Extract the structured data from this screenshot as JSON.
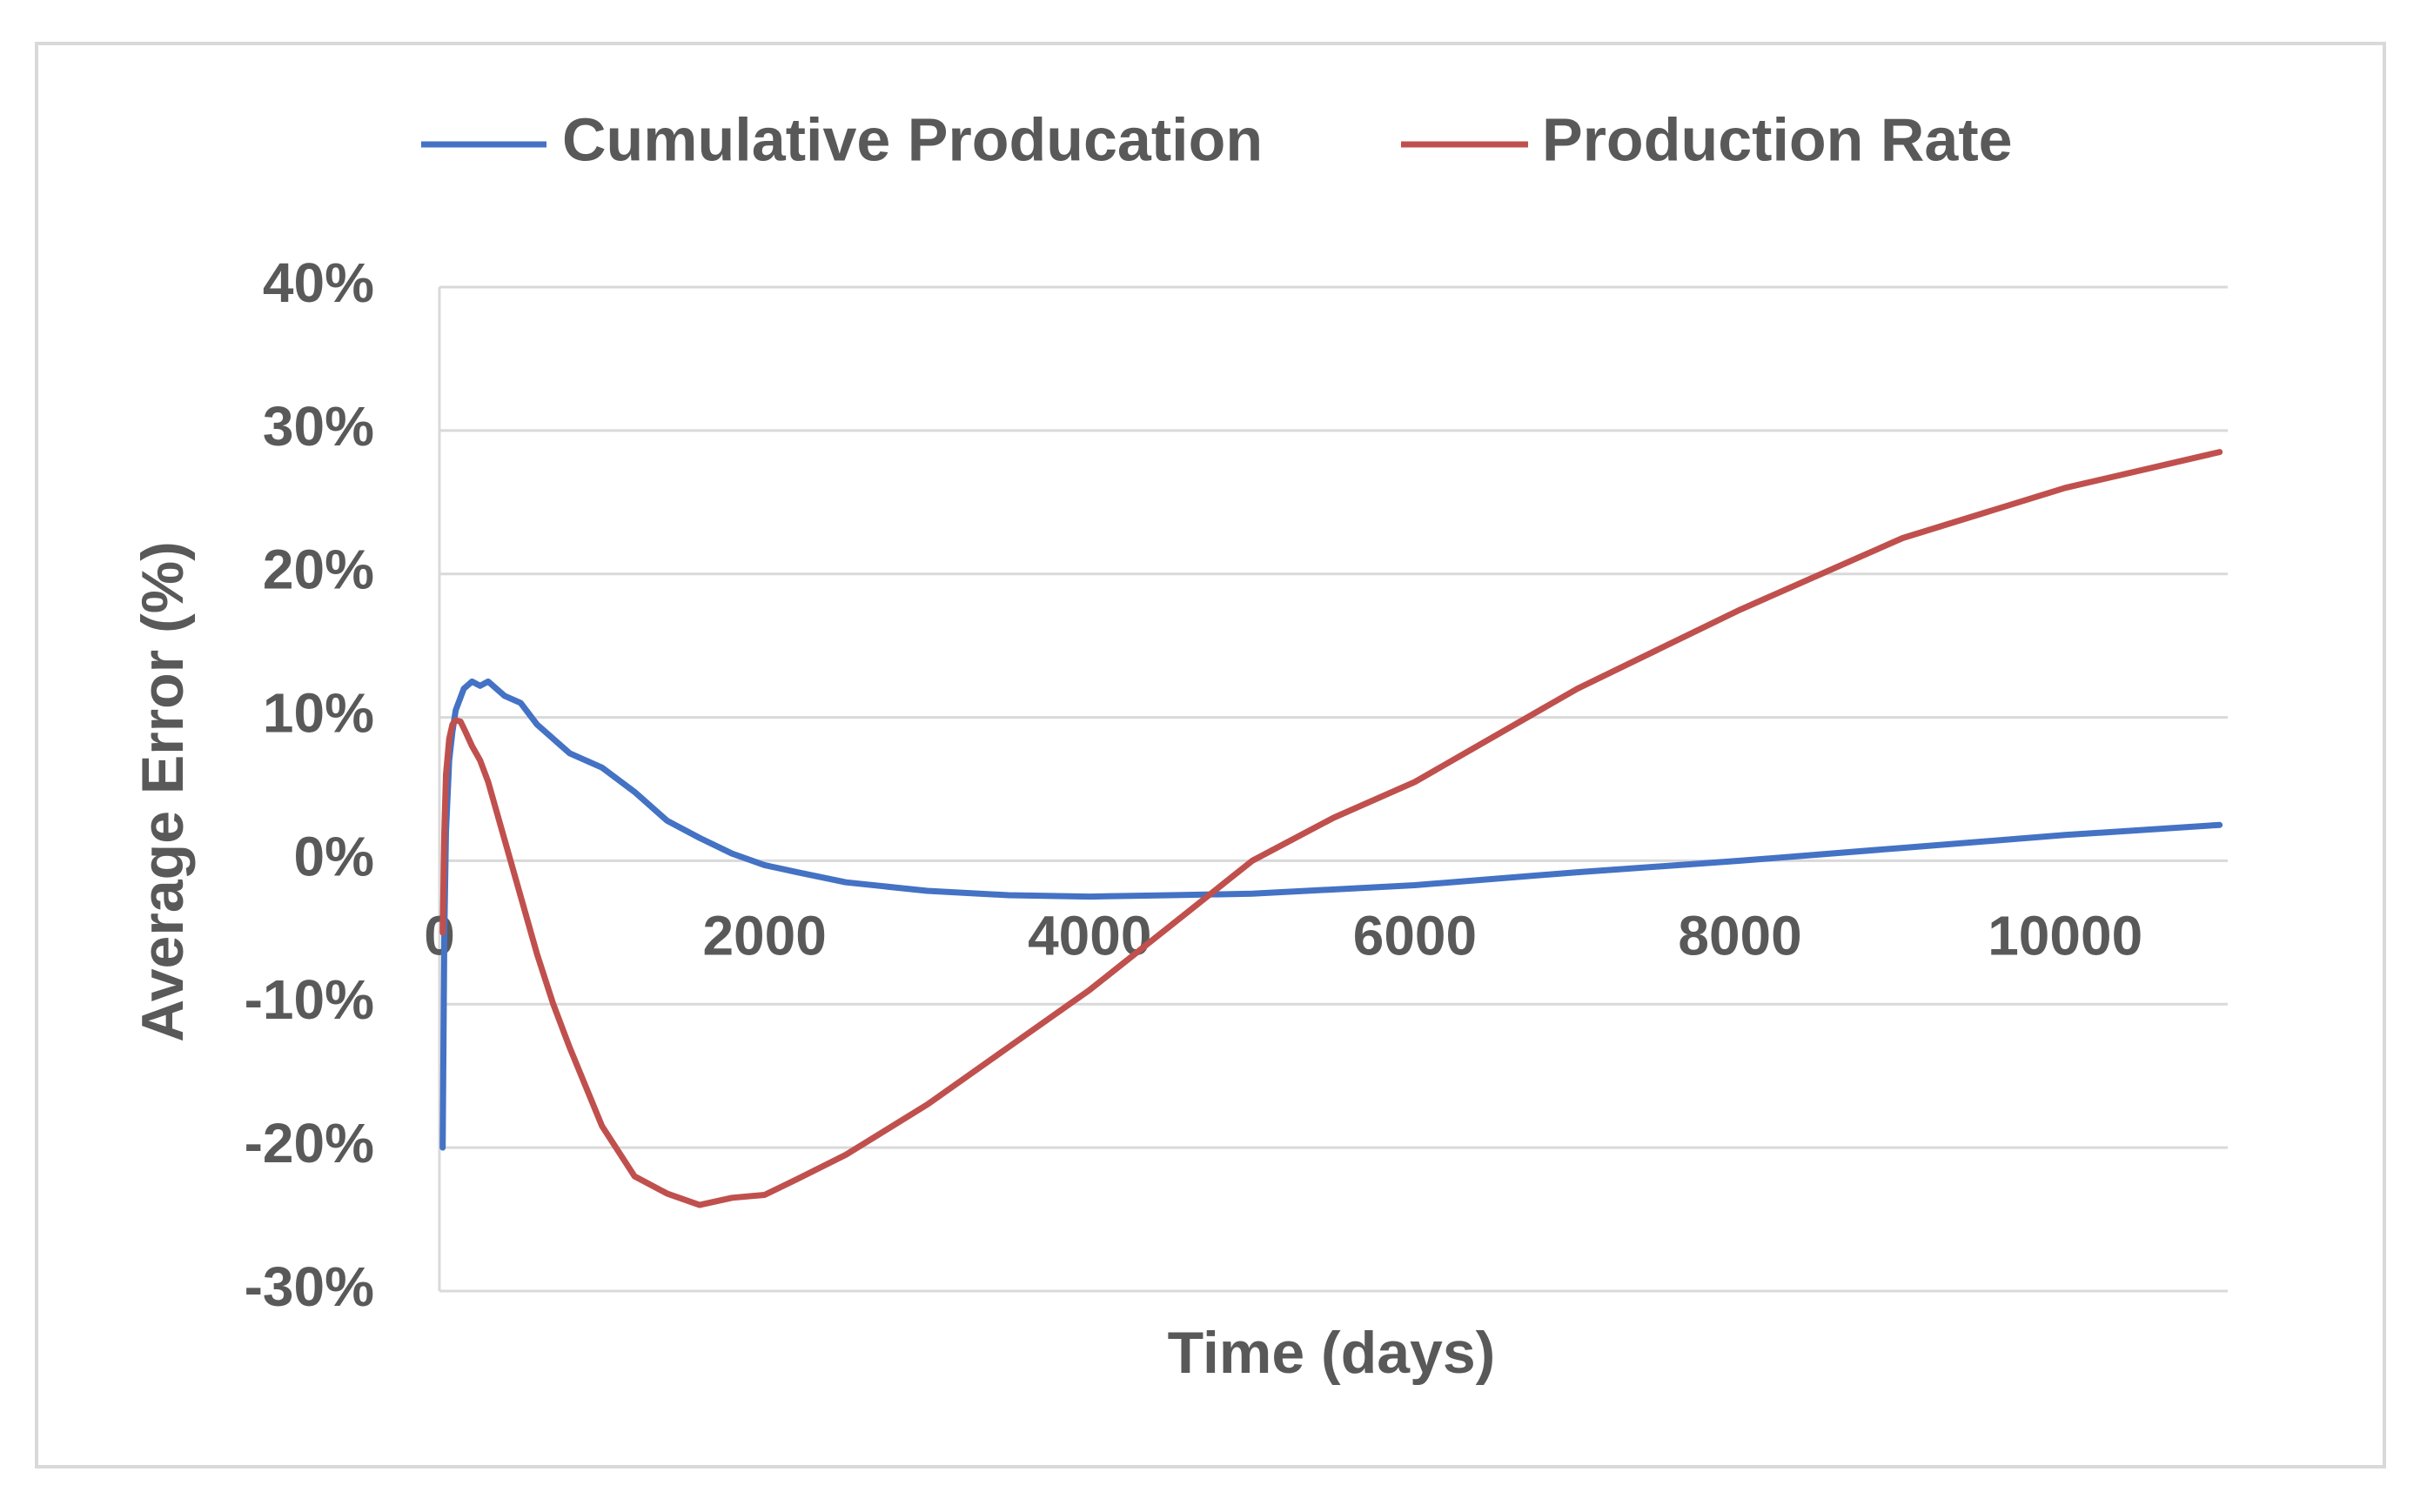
{
  "chart_data": {
    "type": "line",
    "title": "",
    "xlabel": "Time (days)",
    "ylabel": "Average Error (%)",
    "xlim": [
      0,
      11000
    ],
    "ylim": [
      -30,
      40
    ],
    "x_ticks": [
      0,
      2000,
      4000,
      6000,
      8000,
      10000
    ],
    "y_ticks": [
      -30,
      -20,
      -10,
      0,
      10,
      20,
      30,
      40
    ],
    "y_tick_labels": [
      "-30%",
      "-20%",
      "-10%",
      "0%",
      "10%",
      "20%",
      "30%",
      "40%"
    ],
    "grid": true,
    "legend_position": "top",
    "series": [
      {
        "name": "Cumulative Producation",
        "color": "#4472c4",
        "x": [
          20,
          30,
          40,
          60,
          80,
          100,
          150,
          200,
          250,
          300,
          350,
          400,
          500,
          600,
          700,
          800,
          1000,
          1200,
          1400,
          1600,
          1800,
          2000,
          2200,
          2500,
          3000,
          3500,
          4000,
          4500,
          5000,
          6000,
          7000,
          8000,
          9000,
          10000,
          10950
        ],
        "values": [
          -20,
          -5,
          2,
          7,
          9,
          10.5,
          12,
          12.5,
          12.2,
          12.5,
          12,
          11.5,
          11,
          9.5,
          8.5,
          7.5,
          6.5,
          4.8,
          2.8,
          1.6,
          0.5,
          -0.3,
          -0.8,
          -1.5,
          -2.1,
          -2.4,
          -2.5,
          -2.4,
          -2.3,
          -1.7,
          -0.8,
          0.0,
          0.9,
          1.8,
          2.5
        ]
      },
      {
        "name": "Production Rate",
        "color": "#c0504d",
        "x": [
          20,
          30,
          40,
          60,
          80,
          100,
          130,
          160,
          200,
          250,
          300,
          400,
          500,
          600,
          700,
          800,
          1000,
          1200,
          1400,
          1600,
          1800,
          2000,
          2200,
          2500,
          3000,
          3500,
          4000,
          4500,
          5000,
          5500,
          6000,
          7000,
          8000,
          9000,
          10000,
          10950
        ],
        "values": [
          -5,
          2,
          6,
          8.5,
          9.5,
          9.8,
          9.7,
          9,
          8,
          7,
          5.5,
          1.5,
          -2.5,
          -6.5,
          -10,
          -13,
          -18.5,
          -22,
          -23.2,
          -24,
          -23.5,
          -23.3,
          -22.2,
          -20.5,
          -17,
          -13,
          -9,
          -4.5,
          0.0,
          3,
          5.5,
          12,
          17.5,
          22.5,
          26,
          28.5
        ]
      }
    ]
  }
}
